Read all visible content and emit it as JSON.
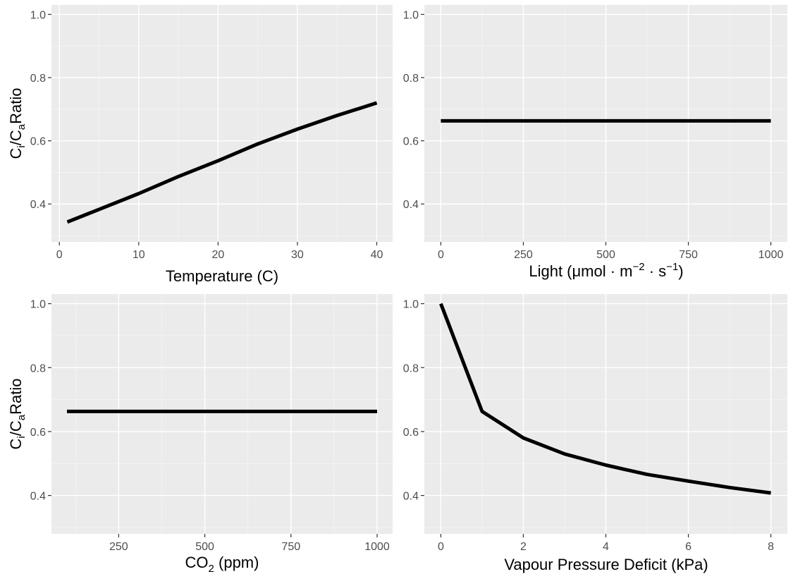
{
  "colors": {
    "panel_background": "#ebebeb",
    "grid": "#ffffff",
    "line": "#000000",
    "tick_text": "#4d4d4d"
  },
  "chart_data": [
    {
      "type": "line",
      "xlabel": "Temperature (C)",
      "ylabel": "Ci/Ca Ratio",
      "xlim": [
        -1,
        42
      ],
      "ylim": [
        0.28,
        1.03
      ],
      "xticks": [
        0,
        10,
        20,
        30,
        40
      ],
      "xtick_labels": [
        "0",
        "10",
        "20",
        "30",
        "40"
      ],
      "yticks": [
        0.4,
        0.6,
        0.8,
        1.0
      ],
      "ytick_labels": [
        "0.4",
        "0.6",
        "0.8",
        "1.0"
      ],
      "grid": true,
      "legend": "none",
      "series": [
        {
          "x": [
            1,
            5,
            10,
            15,
            20,
            25,
            30,
            35,
            40
          ],
          "values": [
            0.343,
            0.383,
            0.433,
            0.487,
            0.537,
            0.59,
            0.637,
            0.68,
            0.72
          ]
        }
      ]
    },
    {
      "type": "line",
      "xlabel": "Light (μmol · m−2 · s−1)",
      "xlabel_parts": {
        "prefix": "Light (μmol · m",
        "exp1": "−2",
        "middle": " · s",
        "exp2": "−1",
        "suffix": ")"
      },
      "ylabel": "",
      "xlim": [
        -50,
        1050
      ],
      "ylim": [
        0.28,
        1.03
      ],
      "xticks": [
        0,
        250,
        500,
        750,
        1000
      ],
      "xtick_labels": [
        "0",
        "250",
        "500",
        "750",
        "1000"
      ],
      "yticks": [
        0.4,
        0.6,
        0.8,
        1.0
      ],
      "ytick_labels": [
        "0.4",
        "0.6",
        "0.8",
        "1.0"
      ],
      "grid": true,
      "legend": "none",
      "series": [
        {
          "x": [
            0,
            1000
          ],
          "values": [
            0.663,
            0.663
          ]
        }
      ]
    },
    {
      "type": "line",
      "xlabel": "CO2 (ppm)",
      "xlabel_parts": {
        "prefix": "CO",
        "sub": "2",
        "suffix": " (ppm)"
      },
      "ylabel": "Ci/Ca Ratio",
      "xlim": [
        55,
        1045
      ],
      "ylim": [
        0.28,
        1.03
      ],
      "xticks": [
        250,
        500,
        750,
        1000
      ],
      "xtick_labels": [
        "250",
        "500",
        "750",
        "1000"
      ],
      "yticks": [
        0.4,
        0.6,
        0.8,
        1.0
      ],
      "ytick_labels": [
        "0.4",
        "0.6",
        "0.8",
        "1.0"
      ],
      "grid": true,
      "legend": "none",
      "series": [
        {
          "x": [
            100,
            1000
          ],
          "values": [
            0.663,
            0.663
          ]
        }
      ]
    },
    {
      "type": "line",
      "xlabel": "Vapour Pressure Deficit (kPa)",
      "ylabel": "",
      "xlim": [
        -0.4,
        8.4
      ],
      "ylim": [
        0.28,
        1.03
      ],
      "xticks": [
        0,
        2,
        4,
        6,
        8
      ],
      "xtick_labels": [
        "0",
        "2",
        "4",
        "6",
        "8"
      ],
      "yticks": [
        0.4,
        0.6,
        0.8,
        1.0
      ],
      "ytick_labels": [
        "0.4",
        "0.6",
        "0.8",
        "1.0"
      ],
      "grid": true,
      "legend": "none",
      "series": [
        {
          "x": [
            0,
            1,
            2,
            3,
            4,
            5,
            6,
            7,
            8
          ],
          "values": [
            1.0,
            0.663,
            0.58,
            0.53,
            0.495,
            0.466,
            0.445,
            0.425,
            0.408
          ]
        }
      ]
    }
  ]
}
